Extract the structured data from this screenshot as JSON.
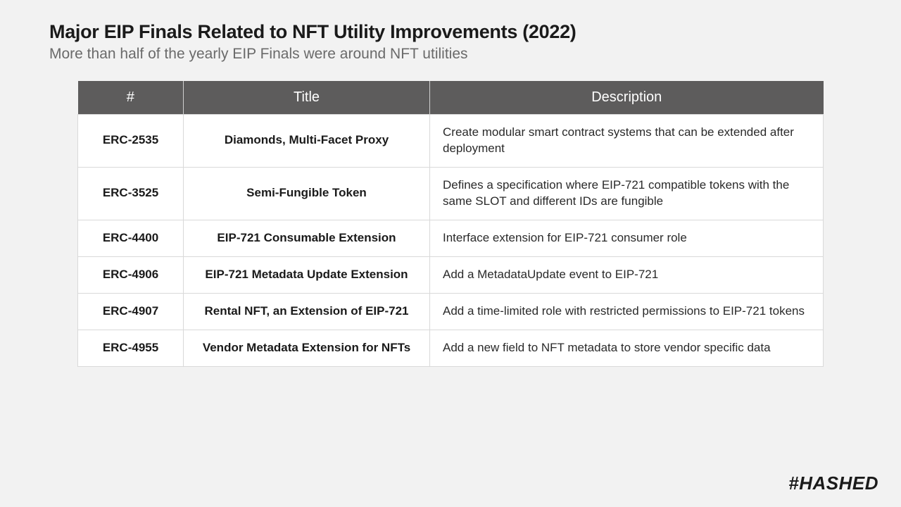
{
  "header": {
    "title": "Major EIP Finals Related to NFT Utility Improvements (2022)",
    "subtitle": "More than half of the yearly EIP Finals were around NFT utilities"
  },
  "table": {
    "type": "table",
    "header_bg": "#5d5c5c",
    "header_fg": "#ffffff",
    "cell_bg": "#ffffff",
    "border_color": "#d9d9d9",
    "columns": [
      "#",
      "Title",
      "Description"
    ],
    "rows": [
      {
        "id": "ERC-2535",
        "title": "Diamonds, Multi-Facet Proxy",
        "desc": "Create modular smart contract systems that can be extended after deployment"
      },
      {
        "id": "ERC-3525",
        "title": "Semi-Fungible Token",
        "desc": "Defines a specification where EIP-721 compatible tokens with the same SLOT and different IDs are fungible"
      },
      {
        "id": "ERC-4400",
        "title": "EIP-721 Consumable Extension",
        "desc": "Interface extension for EIP-721 consumer role"
      },
      {
        "id": "ERC-4906",
        "title": "EIP-721 Metadata Update Extension",
        "desc": "Add a MetadataUpdate event to EIP-721"
      },
      {
        "id": "ERC-4907",
        "title": "Rental NFT, an Extension of EIP-721",
        "desc": "Add a time-limited role with restricted permissions to EIP-721 tokens"
      },
      {
        "id": "ERC-4955",
        "title": "Vendor Metadata Extension for NFTs",
        "desc": "Add a new field to NFT metadata to store vendor specific data"
      }
    ]
  },
  "brand": {
    "name": "#HASHED"
  },
  "page_bg": "#f2f2f2"
}
